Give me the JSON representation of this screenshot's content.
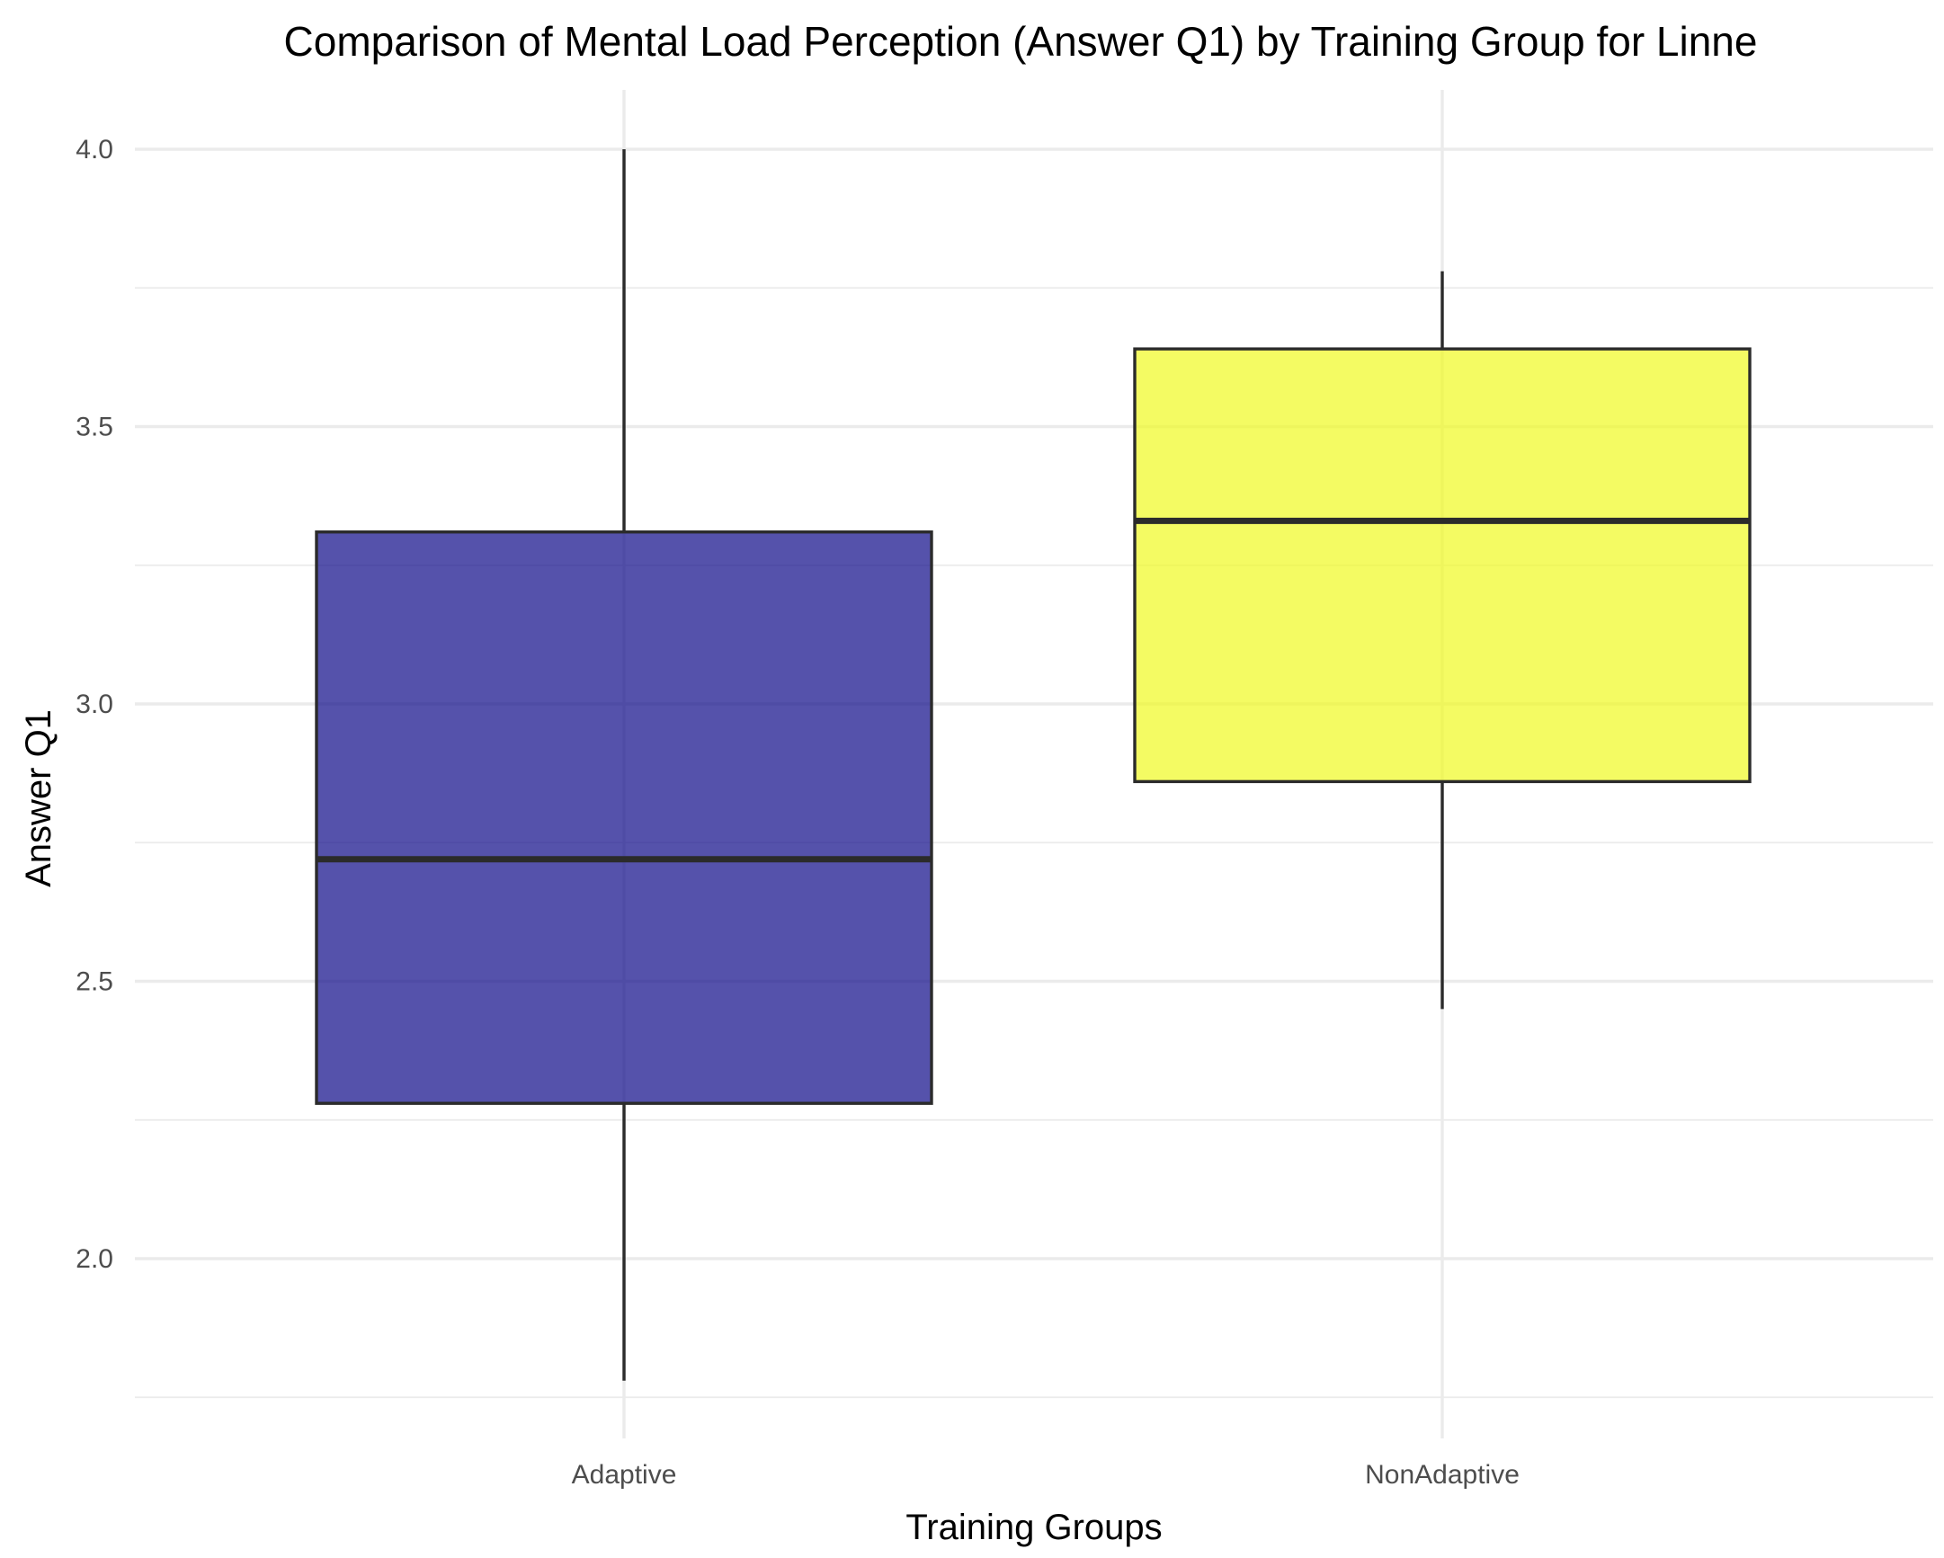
{
  "chart_data": {
    "type": "boxplot",
    "title": "Comparison of Mental Load Perception (Answer Q1) by Training Group for Linne",
    "xlabel": "Training Groups",
    "ylabel": "Answer Q1",
    "ylim": [
      1.75,
      4.1
    ],
    "y_ticks": [
      "2.0",
      "2.5",
      "3.0",
      "3.5",
      "4.0"
    ],
    "y_minor": [
      1.75,
      2.25,
      2.75,
      3.25,
      3.75
    ],
    "categories": [
      "Adaptive",
      "NonAdaptive"
    ],
    "series": [
      {
        "category": "Adaptive",
        "color": "#0d0887",
        "min": 1.78,
        "q1": 2.28,
        "median": 2.72,
        "q3": 3.31,
        "max": 4.0
      },
      {
        "category": "NonAdaptive",
        "color": "#f0f921",
        "min": 2.45,
        "q1": 2.86,
        "median": 3.33,
        "q3": 3.64,
        "max": 3.78
      }
    ],
    "grid": true,
    "legend": "none"
  }
}
